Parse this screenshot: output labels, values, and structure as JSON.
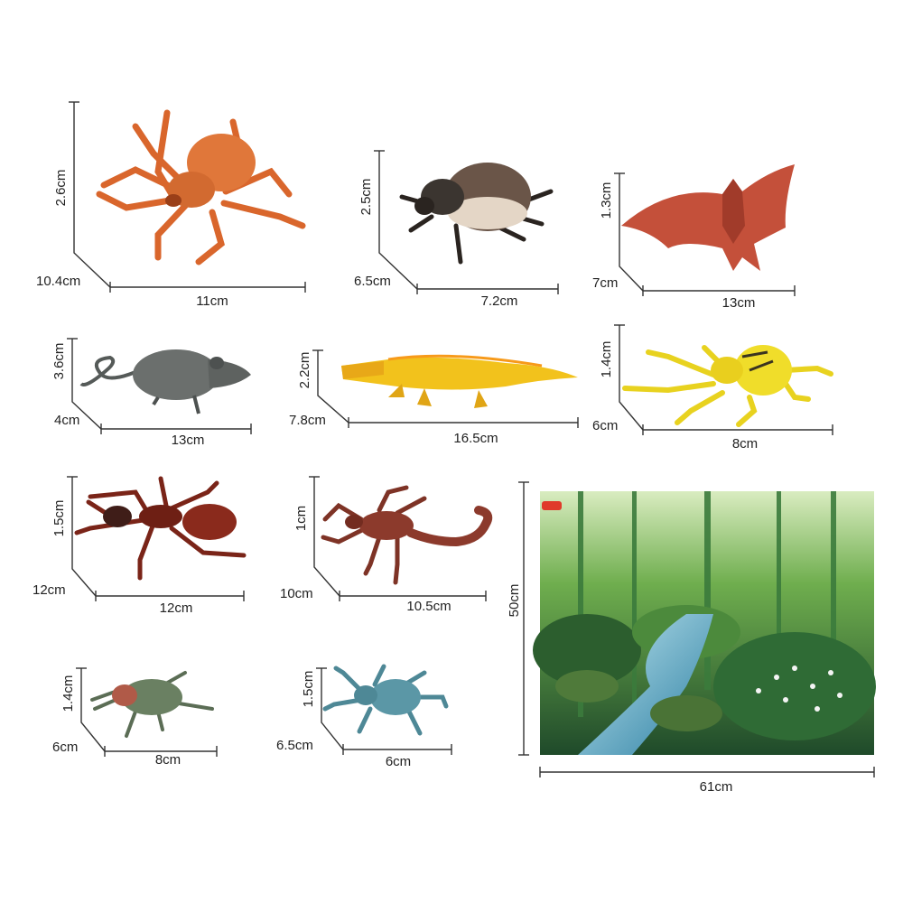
{
  "colors": {
    "spider": "#e0773a",
    "beetle": "#6a5548",
    "bat": "#c4503a",
    "rat": "#6b6f6d",
    "crocodile": "#f2c21c",
    "yellow_beetle": "#f0dd2a",
    "ant": "#8a2a1c",
    "scorpion": "#8c3a2c",
    "stink_bug": "#6a8062",
    "blue_beetle": "#5b97a6",
    "forest": "#2f6b35",
    "line": "#333333"
  },
  "items": [
    {
      "name": "spider",
      "icon": "spider-icon",
      "height": "2.6cm",
      "depth": "10.4cm",
      "length": "11cm"
    },
    {
      "name": "beetle",
      "icon": "beetle-icon",
      "height": "2.5cm",
      "depth": "6.5cm",
      "length": "7.2cm"
    },
    {
      "name": "bat",
      "icon": "bat-icon",
      "height": "1.3cm",
      "depth": "7cm",
      "length": "13cm"
    },
    {
      "name": "rat",
      "icon": "rat-icon",
      "height": "3.6cm",
      "depth": "4cm",
      "length": "13cm"
    },
    {
      "name": "crocodile",
      "icon": "crocodile-icon",
      "height": "2.2cm",
      "depth": "7.8cm",
      "length": "16.5cm"
    },
    {
      "name": "yellow-beetle",
      "icon": "yellow-beetle-icon",
      "height": "1.4cm",
      "depth": "6cm",
      "length": "8cm"
    },
    {
      "name": "ant",
      "icon": "ant-icon",
      "height": "1.5cm",
      "depth": "12cm",
      "length": "12cm"
    },
    {
      "name": "scorpion",
      "icon": "scorpion-icon",
      "height": "1cm",
      "depth": "10cm",
      "length": "10.5cm"
    },
    {
      "name": "stink-bug",
      "icon": "stink-bug-icon",
      "height": "1.4cm",
      "depth": "6cm",
      "length": "8cm"
    },
    {
      "name": "blue-beetle",
      "icon": "blue-beetle-icon",
      "height": "1.5cm",
      "depth": "6.5cm",
      "length": "6cm"
    }
  ],
  "poster": {
    "height": "50cm",
    "width": "61cm"
  }
}
